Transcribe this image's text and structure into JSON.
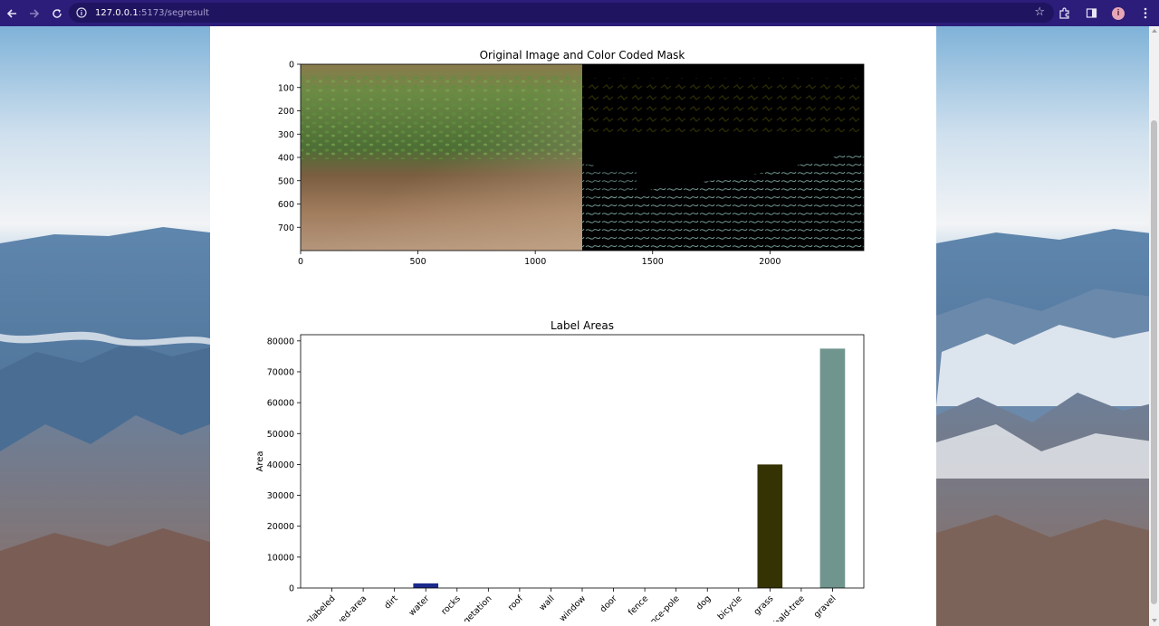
{
  "browser": {
    "url_host": "127.0.0.1",
    "url_rest": ":5173/segresult",
    "back_icon": "arrow-left-icon",
    "forward_icon": "arrow-right-icon",
    "reload_icon": "reload-icon",
    "avatar_letter": "i"
  },
  "figure1": {
    "title": "Original Image and Color Coded Mask",
    "x_ticks": [
      "0",
      "500",
      "1000",
      "1500",
      "2000"
    ],
    "x_tick_values": [
      0,
      500,
      1000,
      1500,
      2000
    ],
    "y_ticks": [
      "0",
      "100",
      "200",
      "300",
      "400",
      "500",
      "600",
      "700"
    ],
    "y_tick_values": [
      0,
      100,
      200,
      300,
      400,
      500,
      600,
      700
    ],
    "x_range": [
      0,
      2400
    ],
    "y_range": [
      0,
      800
    ]
  },
  "chart_data": {
    "type": "bar",
    "title": "Label Areas",
    "xlabel": "",
    "ylabel": "Area",
    "ylim": [
      0,
      82000
    ],
    "y_ticks": [
      0,
      10000,
      20000,
      30000,
      40000,
      50000,
      60000,
      70000,
      80000
    ],
    "categories": [
      "unlabeled",
      "paved-area",
      "dirt",
      "water",
      "rocks",
      "vegetation",
      "roof",
      "wall",
      "window",
      "door",
      "fence",
      "fence-pole",
      "dog",
      "bicycle",
      "grass",
      "bald-tree",
      "gravel"
    ],
    "values": [
      0,
      0,
      0,
      1500,
      0,
      0,
      0,
      0,
      0,
      0,
      0,
      0,
      0,
      0,
      40000,
      0,
      77500
    ],
    "colors": [
      "#000000",
      "#000000",
      "#000000",
      "#1c2a8e",
      "#000000",
      "#000000",
      "#000000",
      "#000000",
      "#000000",
      "#000000",
      "#000000",
      "#000000",
      "#000000",
      "#000000",
      "#353304",
      "#000000",
      "#6f958e"
    ],
    "grid": false
  }
}
